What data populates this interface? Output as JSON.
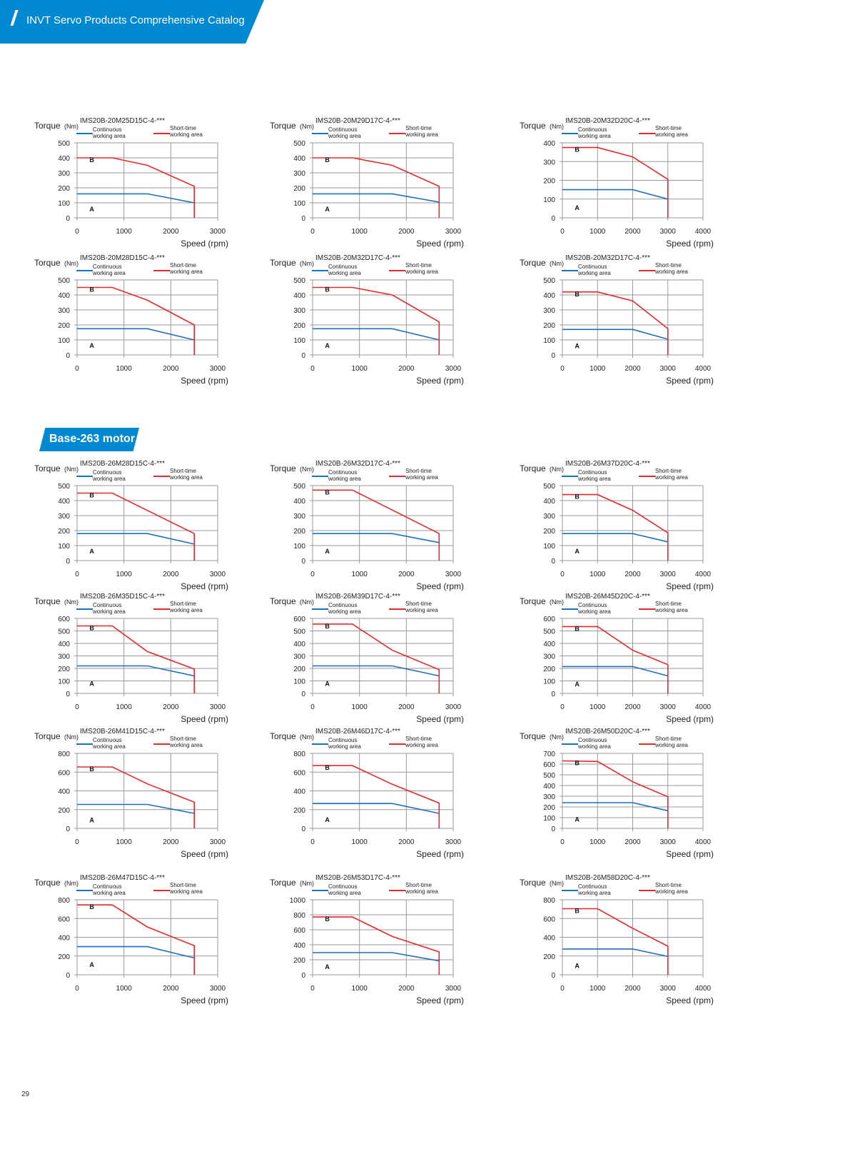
{
  "header": {
    "title": "INVT Servo Products Comprehensive Catalog"
  },
  "section": {
    "title": "Base-263 motor"
  },
  "page_number": "29",
  "colors": {
    "brand": "#0088d1",
    "continuous": "#1f6fbf",
    "short_time": "#e8282e",
    "grid": "#999999"
  },
  "chart_data": [
    {
      "type": "line",
      "title": "IMS20B-20M25D15C-4-***",
      "ylabel": "Torque",
      "yunit": "(Nm)",
      "xlabel": "Speed  (rpm)",
      "xlim": [
        0,
        3000
      ],
      "xstep": 1000,
      "ylim": [
        0,
        500
      ],
      "ystep": 100,
      "grid": true,
      "series": [
        {
          "name": "Continuous working area",
          "x": [
            0,
            1500,
            2500
          ],
          "y": [
            160,
            160,
            100
          ]
        },
        {
          "name": "Short-time working area",
          "x": [
            0,
            750,
            1500,
            2500,
            2500
          ],
          "y": [
            400,
            400,
            350,
            210,
            0
          ]
        }
      ],
      "annotations": [
        "A",
        "B"
      ]
    },
    {
      "type": "line",
      "title": "IMS20B-20M29D17C-4-***",
      "ylabel": "Torque",
      "yunit": "(Nm)",
      "xlabel": "Speed  (rpm)",
      "xlim": [
        0,
        3000
      ],
      "xstep": 1000,
      "ylim": [
        0,
        500
      ],
      "ystep": 100,
      "grid": true,
      "series": [
        {
          "name": "Continuous working area",
          "x": [
            0,
            1700,
            2700
          ],
          "y": [
            160,
            160,
            105
          ]
        },
        {
          "name": "Short-time working area",
          "x": [
            0,
            850,
            1700,
            2700,
            2700
          ],
          "y": [
            400,
            400,
            350,
            210,
            0
          ]
        }
      ],
      "annotations": [
        "A",
        "B"
      ]
    },
    {
      "type": "line",
      "title": "IMS20B-20M32D20C-4-***",
      "ylabel": "Torque",
      "yunit": "(Nm)",
      "xlabel": "Speed  (rpm)",
      "xlim": [
        0,
        4000
      ],
      "xstep": 1000,
      "ylim": [
        0,
        400
      ],
      "ystep": 100,
      "grid": true,
      "series": [
        {
          "name": "Continuous working area",
          "x": [
            0,
            2000,
            3000
          ],
          "y": [
            150,
            150,
            100
          ]
        },
        {
          "name": "Short-time working area",
          "x": [
            0,
            1000,
            2000,
            3000,
            3000
          ],
          "y": [
            375,
            375,
            325,
            205,
            0
          ]
        }
      ],
      "annotations": [
        "A",
        "B"
      ]
    },
    {
      "type": "line",
      "title": "IMS20B-20M28D15C-4-***",
      "ylabel": "Torque",
      "yunit": "(Nm)",
      "xlabel": "Speed  (rpm)",
      "xlim": [
        0,
        3000
      ],
      "xstep": 1000,
      "ylim": [
        0,
        500
      ],
      "ystep": 100,
      "grid": true,
      "series": [
        {
          "name": "Continuous working area",
          "x": [
            0,
            1500,
            2500
          ],
          "y": [
            175,
            175,
            100
          ]
        },
        {
          "name": "Short-time working area",
          "x": [
            0,
            750,
            1500,
            2500,
            2500
          ],
          "y": [
            450,
            450,
            365,
            200,
            0
          ]
        }
      ],
      "annotations": [
        "A",
        "B"
      ]
    },
    {
      "type": "line",
      "title": "IMS20B-20M32D17C-4-***",
      "ylabel": "Torque",
      "yunit": "(Nm)",
      "xlabel": "Speed  (rpm)",
      "xlim": [
        0,
        3000
      ],
      "xstep": 1000,
      "ylim": [
        0,
        500
      ],
      "ystep": 100,
      "grid": true,
      "series": [
        {
          "name": "Continuous working area",
          "x": [
            0,
            1700,
            2700
          ],
          "y": [
            175,
            175,
            100
          ]
        },
        {
          "name": "Short-time working area",
          "x": [
            0,
            850,
            1700,
            2700,
            2700
          ],
          "y": [
            450,
            450,
            400,
            220,
            0
          ]
        }
      ],
      "annotations": [
        "A",
        "B"
      ]
    },
    {
      "type": "line",
      "title": "IMS20B-20M32D17C-4-***",
      "ylabel": "Torque",
      "yunit": "(Nm)",
      "xlabel": "Speed  (rpm)",
      "xlim": [
        0,
        4000
      ],
      "xstep": 1000,
      "ylim": [
        0,
        500
      ],
      "ystep": 100,
      "grid": true,
      "series": [
        {
          "name": "Continuous working area",
          "x": [
            0,
            2000,
            3000
          ],
          "y": [
            170,
            170,
            105
          ]
        },
        {
          "name": "Short-time working area",
          "x": [
            0,
            1000,
            2000,
            3000,
            3000
          ],
          "y": [
            420,
            420,
            360,
            175,
            0
          ]
        }
      ],
      "annotations": [
        "A",
        "B"
      ]
    },
    {
      "type": "line",
      "title": "IMS20B-26M28D15C-4-***",
      "ylabel": "Torque",
      "yunit": "(Nm)",
      "xlabel": "Speed  (rpm)",
      "xlim": [
        0,
        3000
      ],
      "xstep": 1000,
      "ylim": [
        0,
        500
      ],
      "ystep": 100,
      "grid": true,
      "series": [
        {
          "name": "Continuous working area",
          "x": [
            0,
            1500,
            2500
          ],
          "y": [
            180,
            180,
            110
          ]
        },
        {
          "name": "Short-time working area",
          "x": [
            0,
            750,
            2500,
            2500
          ],
          "y": [
            450,
            450,
            180,
            0
          ]
        }
      ],
      "annotations": [
        "A",
        "B"
      ]
    },
    {
      "type": "line",
      "title": "IMS20B-26M32D17C-4-***",
      "ylabel": "Torque",
      "yunit": "(Nm)",
      "xlabel": "Speed  (rpm)",
      "xlim": [
        0,
        3000
      ],
      "xstep": 1000,
      "ylim": [
        0,
        500
      ],
      "ystep": 100,
      "grid": true,
      "series": [
        {
          "name": "Continuous working area",
          "x": [
            0,
            1700,
            2700
          ],
          "y": [
            180,
            180,
            120
          ]
        },
        {
          "name": "Short-time working area",
          "x": [
            0,
            850,
            2700,
            2700
          ],
          "y": [
            470,
            470,
            180,
            0
          ]
        }
      ],
      "annotations": [
        "A",
        "B"
      ]
    },
    {
      "type": "line",
      "title": "IMS20B-26M37D20C-4-***",
      "ylabel": "Torque",
      "yunit": "(Nm)",
      "xlabel": "Speed  (rpm)",
      "xlim": [
        0,
        4000
      ],
      "xstep": 1000,
      "ylim": [
        0,
        500
      ],
      "ystep": 100,
      "grid": true,
      "series": [
        {
          "name": "Continuous working area",
          "x": [
            0,
            2000,
            3000
          ],
          "y": [
            180,
            180,
            125
          ]
        },
        {
          "name": "Short-time working area",
          "x": [
            0,
            1000,
            2000,
            3000,
            3000
          ],
          "y": [
            440,
            440,
            335,
            185,
            0
          ]
        }
      ],
      "annotations": [
        "A",
        "B"
      ]
    },
    {
      "type": "line",
      "title": "IMS20B-26M35D15C-4-***",
      "ylabel": "Torque",
      "yunit": "(Nm)",
      "xlabel": "Speed  (rpm)",
      "xlim": [
        0,
        3000
      ],
      "xstep": 1000,
      "ylim": [
        0,
        600
      ],
      "ystep": 100,
      "grid": true,
      "series": [
        {
          "name": "Continuous working area",
          "x": [
            0,
            1500,
            2500
          ],
          "y": [
            220,
            220,
            140
          ]
        },
        {
          "name": "Short-time working area",
          "x": [
            0,
            750,
            1500,
            2500,
            2500
          ],
          "y": [
            540,
            540,
            335,
            195,
            0
          ]
        }
      ],
      "annotations": [
        "A",
        "B"
      ]
    },
    {
      "type": "line",
      "title": "IMS20B-26M39D17C-4-***",
      "ylabel": "Torque",
      "yunit": "(Nm)",
      "xlabel": "Speed  (rpm)",
      "xlim": [
        0,
        3000
      ],
      "xstep": 1000,
      "ylim": [
        0,
        600
      ],
      "ystep": 100,
      "grid": true,
      "series": [
        {
          "name": "Continuous working area",
          "x": [
            0,
            1700,
            2700
          ],
          "y": [
            220,
            220,
            140
          ]
        },
        {
          "name": "Short-time working area",
          "x": [
            0,
            850,
            1700,
            2700,
            2700
          ],
          "y": [
            555,
            555,
            345,
            190,
            0
          ]
        }
      ],
      "annotations": [
        "A",
        "B"
      ]
    },
    {
      "type": "line",
      "title": "IMS20B-26M45D20C-4-***",
      "ylabel": "Torque",
      "yunit": "(Nm)",
      "xlabel": "Speed  (rpm)",
      "xlim": [
        0,
        4000
      ],
      "xstep": 1000,
      "ylim": [
        0,
        600
      ],
      "ystep": 100,
      "grid": true,
      "series": [
        {
          "name": "Continuous working area",
          "x": [
            0,
            2000,
            3000
          ],
          "y": [
            215,
            215,
            140
          ]
        },
        {
          "name": "Short-time working area",
          "x": [
            0,
            1000,
            2000,
            3000,
            3000
          ],
          "y": [
            535,
            535,
            345,
            230,
            0
          ]
        }
      ],
      "annotations": [
        "A",
        "B"
      ]
    },
    {
      "type": "line",
      "title": "IMS20B-26M41D15C-4-***",
      "ylabel": "Torque",
      "yunit": "(Nm)",
      "xlabel": "Speed  (rpm)",
      "xlim": [
        0,
        3000
      ],
      "xstep": 1000,
      "ylim": [
        0,
        800
      ],
      "ystep": 200,
      "grid": true,
      "series": [
        {
          "name": "Continuous working area",
          "x": [
            0,
            1500,
            2500
          ],
          "y": [
            255,
            255,
            160
          ]
        },
        {
          "name": "Short-time working area",
          "x": [
            0,
            750,
            1500,
            2500,
            2500
          ],
          "y": [
            655,
            655,
            475,
            280,
            0
          ]
        }
      ],
      "annotations": [
        "A",
        "B"
      ]
    },
    {
      "type": "line",
      "title": "IMS20B-26M46D17C-4-***",
      "ylabel": "Torque",
      "yunit": "(Nm)",
      "xlabel": "Speed  (rpm)",
      "xlim": [
        0,
        3000
      ],
      "xstep": 1000,
      "ylim": [
        0,
        800
      ],
      "ystep": 200,
      "grid": true,
      "series": [
        {
          "name": "Continuous working area",
          "x": [
            0,
            1700,
            2700
          ],
          "y": [
            265,
            265,
            160
          ]
        },
        {
          "name": "Short-time working area",
          "x": [
            0,
            850,
            1700,
            2700,
            2700
          ],
          "y": [
            670,
            670,
            470,
            270,
            0
          ]
        }
      ],
      "annotations": [
        "A",
        "B"
      ]
    },
    {
      "type": "line",
      "title": "IMS20B-26M50D20C-4-***",
      "ylabel": "Torque",
      "yunit": "(Nm)",
      "xlabel": "Speed  (rpm)",
      "xlim": [
        0,
        4000
      ],
      "xstep": 1000,
      "ylim": [
        0,
        700
      ],
      "ystep": 100,
      "grid": true,
      "series": [
        {
          "name": "Continuous working area",
          "x": [
            0,
            2000,
            3000
          ],
          "y": [
            240,
            240,
            165
          ]
        },
        {
          "name": "Short-time working area",
          "x": [
            0,
            1000,
            2000,
            3000,
            3000
          ],
          "y": [
            630,
            625,
            435,
            295,
            0
          ]
        }
      ],
      "annotations": [
        "A",
        "B"
      ]
    },
    {
      "type": "line",
      "title": "IMS20B-26M47D15C-4-***",
      "ylabel": "Torque",
      "yunit": "(Nm)",
      "xlabel": "Speed  (rpm)",
      "xlim": [
        0,
        3000
      ],
      "xstep": 1000,
      "ylim": [
        0,
        800
      ],
      "ystep": 200,
      "grid": true,
      "series": [
        {
          "name": "Continuous working area",
          "x": [
            0,
            1500,
            2500
          ],
          "y": [
            300,
            300,
            180
          ]
        },
        {
          "name": "Short-time working area",
          "x": [
            0,
            750,
            1500,
            2500,
            2500
          ],
          "y": [
            745,
            745,
            510,
            310,
            0
          ]
        }
      ],
      "annotations": [
        "A",
        "B"
      ]
    },
    {
      "type": "line",
      "title": "IMS20B-26M53D17C-4-***",
      "ylabel": "Torque",
      "yunit": "(Nm)",
      "xlabel": "Speed  (rpm)",
      "xlim": [
        0,
        3000
      ],
      "xstep": 1000,
      "ylim": [
        0,
        1000
      ],
      "ystep": 200,
      "grid": true,
      "series": [
        {
          "name": "Continuous working area",
          "x": [
            0,
            1700,
            2700
          ],
          "y": [
            295,
            295,
            185
          ]
        },
        {
          "name": "Short-time working area",
          "x": [
            0,
            850,
            1700,
            2700,
            2700
          ],
          "y": [
            770,
            770,
            510,
            305,
            0
          ]
        }
      ],
      "annotations": [
        "A",
        "B"
      ]
    },
    {
      "type": "line",
      "title": "IMS20B-26M58D20C-4-***",
      "ylabel": "Torque",
      "yunit": "(Nm)",
      "xlabel": "Speed  (rpm)",
      "xlim": [
        0,
        4000
      ],
      "xstep": 1000,
      "ylim": [
        0,
        800
      ],
      "ystep": 200,
      "grid": true,
      "series": [
        {
          "name": "Continuous working area",
          "x": [
            0,
            2000,
            3000
          ],
          "y": [
            275,
            275,
            195
          ]
        },
        {
          "name": "Short-time working area",
          "x": [
            0,
            1000,
            2000,
            3000,
            3000
          ],
          "y": [
            705,
            705,
            495,
            305,
            0
          ]
        }
      ],
      "annotations": [
        "A",
        "B"
      ]
    }
  ]
}
